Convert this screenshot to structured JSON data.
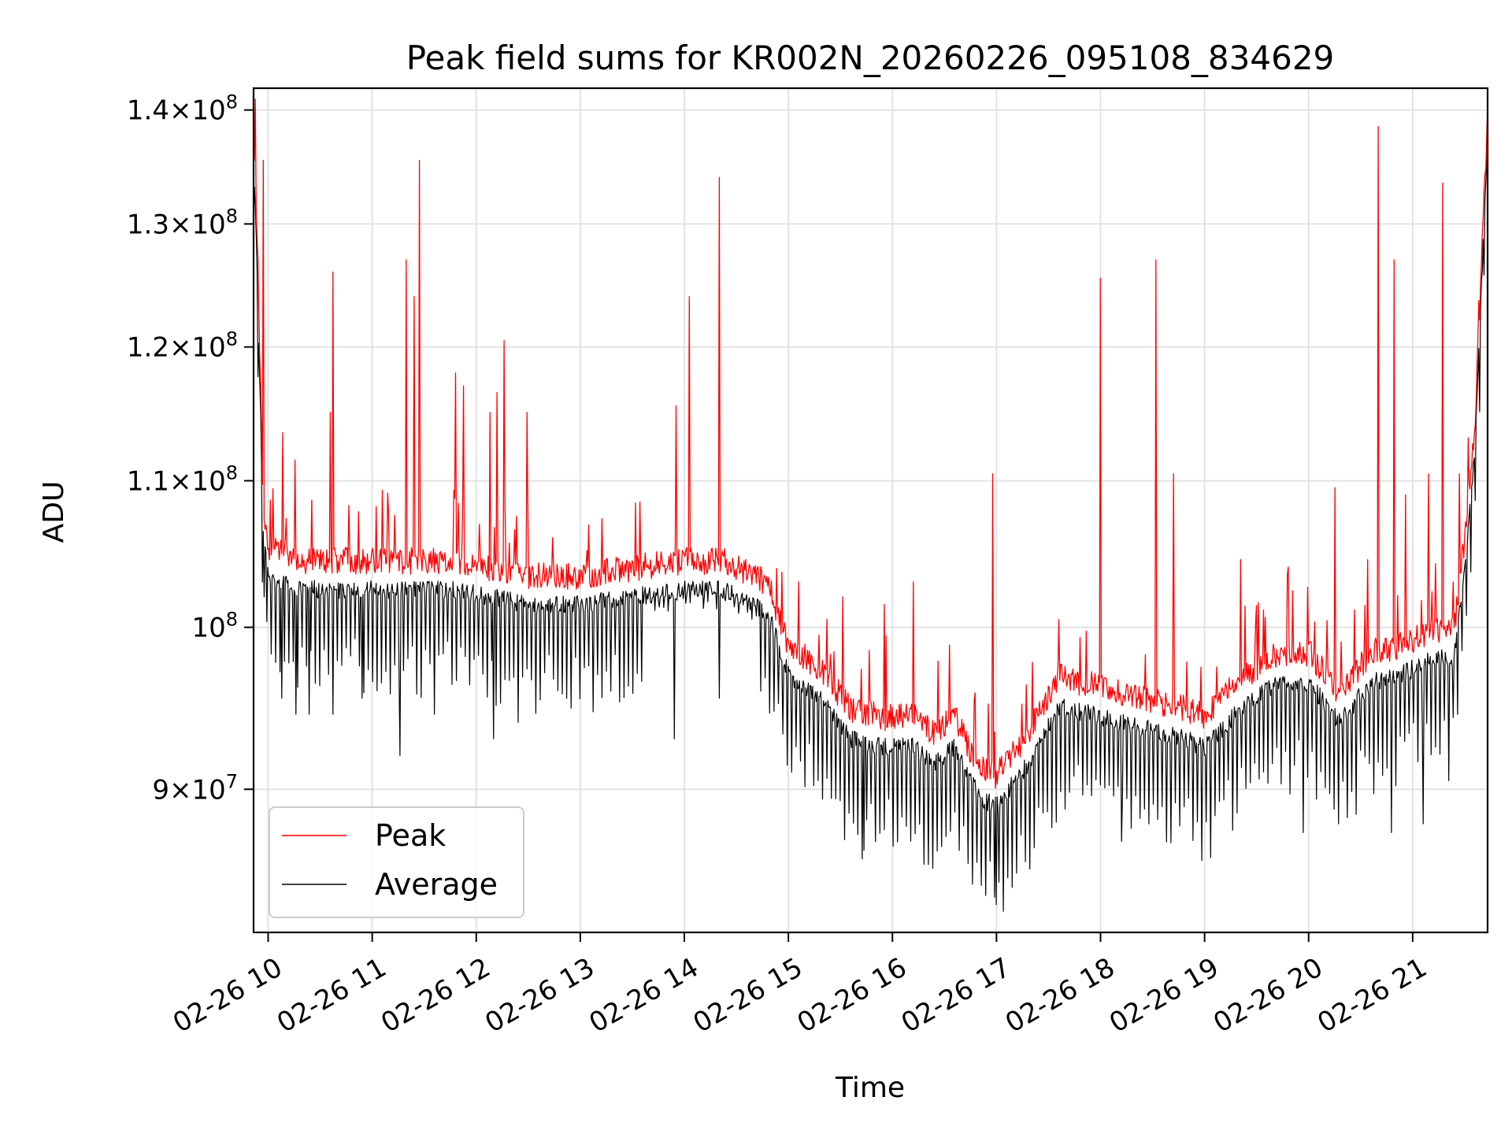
{
  "chart_data": {
    "type": "line",
    "title": "Peak field sums for KR002N_20260226_095108_834629",
    "xlabel": "Time",
    "ylabel": "ADU",
    "yscale": "log",
    "ylim": [
      82000000,
      142000000
    ],
    "xlim_hours": [
      9.86,
      21.72
    ],
    "x_tick_labels": [
      "02-26 10",
      "02-26 11",
      "02-26 12",
      "02-26 13",
      "02-26 14",
      "02-26 15",
      "02-26 16",
      "02-26 17",
      "02-26 18",
      "02-26 19",
      "02-26 20",
      "02-26 21"
    ],
    "x_tick_hours": [
      10,
      11,
      12,
      13,
      14,
      15,
      16,
      17,
      18,
      19,
      20,
      21
    ],
    "y_tick_values": [
      90000000,
      100000000,
      110000000,
      120000000,
      130000000,
      140000000
    ],
    "y_tick_labels": [
      {
        "mant": "9",
        "times": "×",
        "base": "10",
        "exp": "7"
      },
      {
        "mant": "",
        "times": "",
        "base": "10",
        "exp": "8"
      },
      {
        "mant": "1.1",
        "times": "×",
        "base": "10",
        "exp": "8"
      },
      {
        "mant": "1.2",
        "times": "×",
        "base": "10",
        "exp": "8"
      },
      {
        "mant": "1.3",
        "times": "×",
        "base": "10",
        "exp": "8"
      },
      {
        "mant": "1.4",
        "times": "×",
        "base": "10",
        "exp": "8"
      }
    ],
    "grid": true,
    "legend_position": "bottom-left",
    "series": [
      {
        "name": "Peak",
        "color": "#ff0000"
      },
      {
        "name": "Average",
        "color": "#000000"
      }
    ],
    "average_trend": {
      "hours": [
        9.86,
        9.9,
        9.95,
        10.0,
        10.3,
        11.0,
        11.8,
        12.5,
        13.0,
        13.5,
        14.0,
        14.4,
        14.8,
        15.0,
        15.3,
        15.6,
        15.9,
        16.2,
        16.4,
        16.6,
        16.75,
        16.85,
        17.0,
        17.3,
        17.6,
        17.9,
        18.2,
        18.5,
        18.8,
        19.0,
        19.3,
        19.7,
        20.0,
        20.3,
        20.6,
        20.9,
        21.2,
        21.4,
        21.5,
        21.6,
        21.72
      ],
      "values": [
        135000000,
        125000000,
        106000000,
        103500000,
        102500000,
        102500000,
        102500000,
        101500000,
        101500000,
        102000000,
        102500000,
        102500000,
        101000000,
        97000000,
        95500000,
        93000000,
        92500000,
        92500000,
        91500000,
        92500000,
        90500000,
        89500000,
        89000000,
        91500000,
        95000000,
        94500000,
        94000000,
        93500000,
        93000000,
        92500000,
        94500000,
        96500000,
        96500000,
        94000000,
        96500000,
        97000000,
        98000000,
        98000000,
        104000000,
        112000000,
        137000000
      ]
    },
    "peak_offset": 1000000,
    "average_spike_depth": 6000000,
    "average_dip_events": [
      {
        "hour": 9.96,
        "value": 102000000
      },
      {
        "hour": 10.13,
        "value": 95500000
      },
      {
        "hour": 10.27,
        "value": 94500000
      },
      {
        "hour": 10.39,
        "value": 94500000
      },
      {
        "hour": 10.62,
        "value": 94500000
      },
      {
        "hour": 10.9,
        "value": 95500000
      },
      {
        "hour": 11.27,
        "value": 92000000
      },
      {
        "hour": 11.6,
        "value": 94500000
      },
      {
        "hour": 12.17,
        "value": 93000000
      },
      {
        "hour": 12.4,
        "value": 94000000
      },
      {
        "hour": 13.9,
        "value": 93000000
      },
      {
        "hour": 14.34,
        "value": 95500000
      },
      {
        "hour": 15.73,
        "value": 86500000
      },
      {
        "hour": 16.9,
        "value": 84000000
      },
      {
        "hour": 17.0,
        "value": 83500000
      },
      {
        "hour": 18.2,
        "value": 87000000
      },
      {
        "hour": 19.95,
        "value": 87500000
      },
      {
        "hour": 20.8,
        "value": 87500000
      },
      {
        "hour": 21.1,
        "value": 88000000
      },
      {
        "hour": 21.35,
        "value": 90500000
      }
    ],
    "peak_spike_events": [
      {
        "hour": 9.88,
        "value": 141000000
      },
      {
        "hour": 9.95,
        "value": 135500000
      },
      {
        "hour": 10.14,
        "value": 113500000
      },
      {
        "hour": 10.26,
        "value": 111500000
      },
      {
        "hour": 10.62,
        "value": 126000000
      },
      {
        "hour": 10.6,
        "value": 115000000
      },
      {
        "hour": 11.33,
        "value": 127000000
      },
      {
        "hour": 11.4,
        "value": 124000000
      },
      {
        "hour": 11.45,
        "value": 135500000
      },
      {
        "hour": 11.8,
        "value": 118000000
      },
      {
        "hour": 11.88,
        "value": 117000000
      },
      {
        "hour": 12.13,
        "value": 115000000
      },
      {
        "hour": 12.2,
        "value": 116500000
      },
      {
        "hour": 12.27,
        "value": 120500000
      },
      {
        "hour": 12.49,
        "value": 115000000
      },
      {
        "hour": 12.73,
        "value": 106000000
      },
      {
        "hour": 13.57,
        "value": 108500000
      },
      {
        "hour": 13.92,
        "value": 115500000
      },
      {
        "hour": 14.05,
        "value": 124000000
      },
      {
        "hour": 14.34,
        "value": 134000000
      },
      {
        "hour": 15.1,
        "value": 103000000
      },
      {
        "hour": 15.52,
        "value": 102000000
      },
      {
        "hour": 15.92,
        "value": 101500000
      },
      {
        "hour": 16.2,
        "value": 103000000
      },
      {
        "hour": 16.96,
        "value": 110500000
      },
      {
        "hour": 17.6,
        "value": 100500000
      },
      {
        "hour": 18.0,
        "value": 125500000
      },
      {
        "hour": 18.53,
        "value": 127000000
      },
      {
        "hour": 18.7,
        "value": 110500000
      },
      {
        "hour": 19.35,
        "value": 104500000
      },
      {
        "hour": 19.8,
        "value": 104000000
      },
      {
        "hour": 20.25,
        "value": 109500000
      },
      {
        "hour": 20.57,
        "value": 104500000
      },
      {
        "hour": 20.67,
        "value": 138500000
      },
      {
        "hour": 20.82,
        "value": 127000000
      },
      {
        "hour": 20.93,
        "value": 109000000
      },
      {
        "hour": 21.15,
        "value": 110500000
      },
      {
        "hour": 21.29,
        "value": 133500000
      },
      {
        "hour": 21.45,
        "value": 110500000
      },
      {
        "hour": 21.62,
        "value": 116000000
      }
    ]
  }
}
